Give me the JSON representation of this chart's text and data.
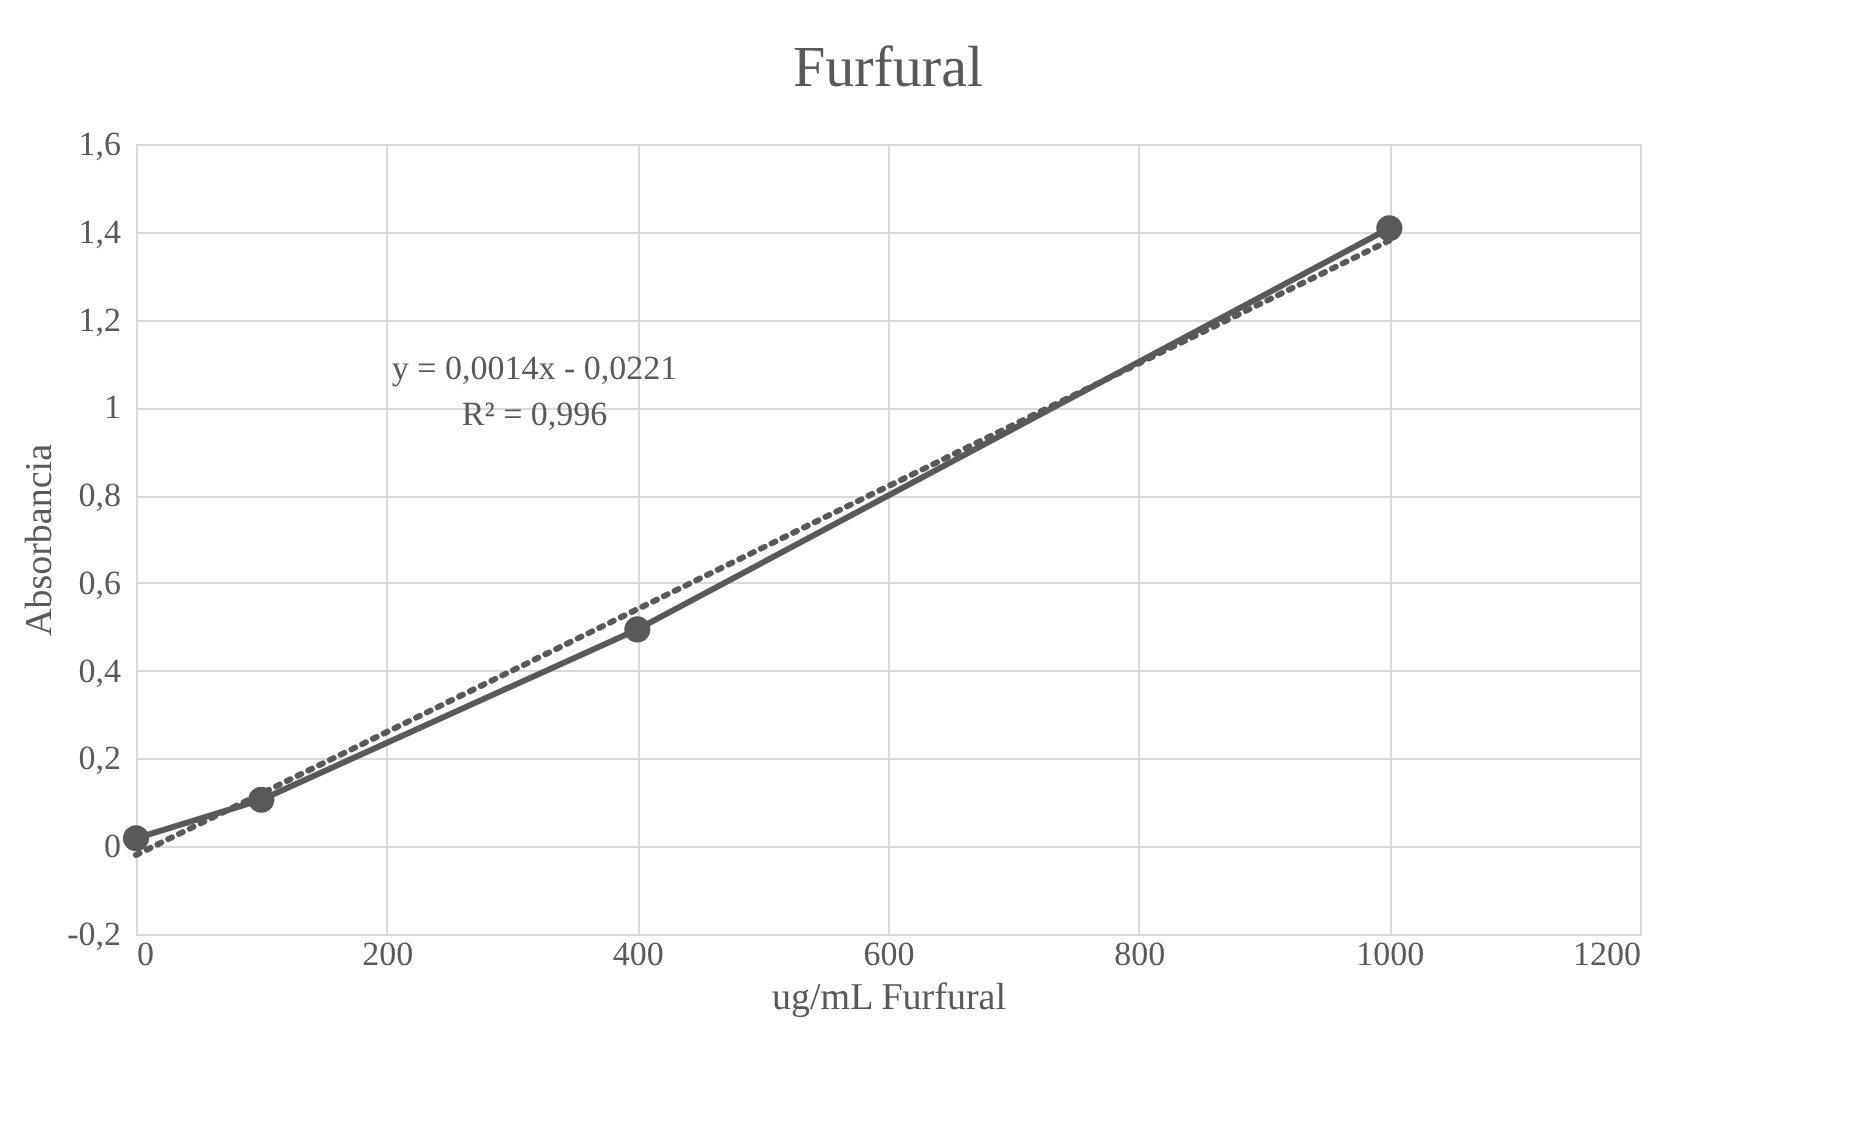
{
  "chart_data": {
    "type": "line",
    "title": "Furfural",
    "xlabel": "ug/mL Furfural",
    "ylabel": "Absorbancia",
    "x": [
      0,
      100,
      400,
      1000
    ],
    "series": [
      {
        "color": "#595959",
        "values": [
          0.018,
          0.106,
          0.494,
          1.408
        ],
        "marker": "circle",
        "line_style": "solid"
      },
      {
        "type": "line",
        "x": [
          0,
          1000
        ],
        "color": "#595959",
        "values": [
          -0.02,
          1.38
        ],
        "marker": "none",
        "line_style": "dotted"
      }
    ],
    "xlim": [
      0,
      1200
    ],
    "xticks": [
      0,
      200,
      400,
      600,
      800,
      1000,
      1200
    ],
    "ylim": [
      -0.2,
      1.6
    ],
    "yticks": [
      {
        "value": -0.2,
        "label": "-0,2"
      },
      {
        "value": 0,
        "label": "0"
      },
      {
        "value": 0.2,
        "label": "0,2"
      },
      {
        "value": 0.4,
        "label": "0,4"
      },
      {
        "value": 0.6,
        "label": "0,6"
      },
      {
        "value": 0.8,
        "label": "0,8"
      },
      {
        "value": 1,
        "label": "1"
      },
      {
        "value": 1.2,
        "label": "1,2"
      },
      {
        "value": 1.4,
        "label": "1,4"
      },
      {
        "value": 1.6,
        "label": "1,6"
      }
    ],
    "annotations": [
      "y = 0,0014x - 0,0221",
      "R² = 0,996"
    ],
    "grid": true
  }
}
